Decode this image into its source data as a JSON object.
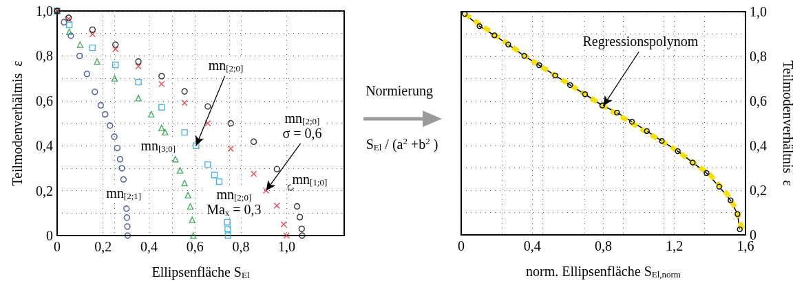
{
  "chart_data": [
    {
      "type": "scatter",
      "xlabel": "Ellipsenfläche S$_{El}$",
      "ylabel": "Teilmodenverhältnis  ε",
      "xlim": [
        0,
        1.25
      ],
      "xticks": [
        0,
        {
          "value": 0.2,
          "label": "0,2"
        },
        {
          "value": 0.25,
          "label": null
        },
        {
          "value": 0.4,
          "label": "0,4"
        },
        {
          "value": 0.5,
          "label": null
        },
        {
          "value": 0.6,
          "label": "0,6"
        },
        {
          "value": 0.75,
          "label": null
        },
        {
          "value": 0.8,
          "label": "0,8"
        },
        {
          "value": 1,
          "label": "1,0"
        }
      ],
      "ylim": [
        0,
        1
      ],
      "yticks": [
        0,
        {
          "value": 0.1,
          "label": null
        },
        {
          "value": 0.2,
          "label": "0,2"
        },
        {
          "value": 0.3,
          "label": null
        },
        {
          "value": 0.4,
          "label": "0,4"
        },
        {
          "value": 0.5,
          "label": null
        },
        {
          "value": 0.6,
          "label": "0,6"
        },
        {
          "value": 0.7,
          "label": null
        },
        {
          "value": 0.8,
          "label": "0,8"
        },
        {
          "value": 0.9,
          "label": null
        },
        {
          "value": 1,
          "label": "1,0"
        }
      ],
      "grid": true,
      "series": [
        {
          "color": "#1f2f8f",
          "marker": "circle",
          "x": [
            0,
            0.03,
            0.06,
            0.098,
            0.13,
            0.164,
            0.19,
            0.209,
            0.23,
            0.249,
            0.262,
            0.274,
            0.282,
            0.289,
            0.302,
            0.304,
            0.306,
            0.307
          ],
          "values": [
            1,
            0.95,
            0.89,
            0.8,
            0.72,
            0.64,
            0.58,
            0.54,
            0.49,
            0.44,
            0.39,
            0.34,
            0.3,
            0.25,
            0.12,
            0.08,
            0.04,
            0
          ]
        },
        {
          "color": "#1a9a3a",
          "marker": "triangle",
          "x": [
            0,
            0.053,
            0.1,
            0.174,
            0.25,
            0.354,
            0.41,
            0.455,
            0.47,
            0.515,
            0.535,
            0.555,
            0.57,
            0.58,
            0.588,
            0.593
          ],
          "values": [
            1,
            0.907,
            0.85,
            0.775,
            0.7,
            0.612,
            0.54,
            0.479,
            0.46,
            0.34,
            0.29,
            0.234,
            0.18,
            0.13,
            0.07,
            0
          ]
        },
        {
          "color": "#1fa0e0",
          "marker": "square",
          "x": [
            0,
            0.053,
            0.154,
            0.254,
            0.354,
            0.455,
            0.555,
            0.605,
            0.656,
            0.685,
            0.706,
            0.741,
            0.743,
            0.744
          ],
          "values": [
            1,
            0.938,
            0.836,
            0.76,
            0.683,
            0.571,
            0.459,
            0.4,
            0.316,
            0.27,
            0.24,
            0.06,
            0.03,
            0
          ]
        },
        {
          "color": "#e0202a",
          "marker": "cross",
          "x": [
            0,
            0.05,
            0.154,
            0.254,
            0.354,
            0.455,
            0.555,
            0.656,
            0.756,
            0.856,
            0.91,
            0.957,
            0.987,
            0.999
          ],
          "values": [
            1,
            0.965,
            0.897,
            0.83,
            0.754,
            0.675,
            0.591,
            0.5,
            0.387,
            0.275,
            0.2,
            0.133,
            0.05,
            0
          ]
        },
        {
          "color": "#000000",
          "marker": "circle",
          "x": [
            0,
            0.05,
            0.154,
            0.254,
            0.354,
            0.455,
            0.555,
            0.656,
            0.756,
            0.856,
            0.957,
            1.017,
            1.045,
            1.057,
            1.065,
            1.067
          ],
          "values": [
            1,
            0.97,
            0.917,
            0.85,
            0.775,
            0.71,
            0.642,
            0.575,
            0.5,
            0.418,
            0.296,
            0.214,
            0.13,
            0.082,
            0.03,
            0
          ]
        }
      ],
      "annotations": [
        "mn$_{[2;1]}$",
        "mn$_{[3;0]}$",
        "mn$_{[2;0]}$\nMa$_{x}$ = 0,3",
        {
          "text": "mn$_{[2;0]}$\nσ = 0,6",
          "x": 0.91,
          "y": 0.2
        },
        "mn$_{[1;0]}$",
        {
          "text": "mn$_{[2;0]}$",
          "x": 0.605,
          "y": 0.4
        }
      ]
    },
    {
      "type": "line",
      "xlabel": "norm. Ellipsenfläche S$_{El,norm}$",
      "ylabel": "Teilmodenverhältnis  ε",
      "xlim": [
        0,
        1.6
      ],
      "xticks": [
        0,
        {
          "value": 0.23,
          "label": null
        },
        {
          "value": 0.4,
          "label": "0,4"
        },
        {
          "value": 0.46,
          "label": null
        },
        {
          "value": 0.69,
          "label": null
        },
        {
          "value": 0.8,
          "label": "0,8"
        },
        {
          "value": 0.91,
          "label": null
        },
        {
          "value": 1.14,
          "label": null
        },
        {
          "value": 1.2,
          "label": "1,2"
        },
        {
          "value": 1.37,
          "label": null
        },
        {
          "value": 1.6,
          "label": "1,6"
        }
      ],
      "ylim": [
        0,
        1
      ],
      "yticks": [
        0,
        {
          "value": 0.1,
          "label": null
        },
        {
          "value": 0.2,
          "label": "0,2"
        },
        {
          "value": 0.3,
          "label": null
        },
        {
          "value": 0.4,
          "label": "0,4"
        },
        {
          "value": 0.5,
          "label": null
        },
        {
          "value": 0.6,
          "label": "0,6"
        },
        {
          "value": 0.7,
          "label": null
        },
        {
          "value": 0.8,
          "label": "0,8"
        },
        {
          "value": 0.9,
          "label": null
        },
        {
          "value": 1,
          "label": "1,0"
        }
      ],
      "grid": true,
      "series": [
        {
          "color": "#000000",
          "marker": "circle",
          "x": [
            0.02,
            0.103,
            0.187,
            0.265,
            0.355,
            0.439,
            0.529,
            0.613,
            0.697,
            0.794,
            0.877,
            0.961,
            1.045,
            1.129,
            1.219,
            1.303,
            1.381,
            1.452,
            1.516,
            1.555,
            1.568
          ],
          "values": [
            0.99,
            0.935,
            0.894,
            0.853,
            0.802,
            0.76,
            0.714,
            0.671,
            0.63,
            0.58,
            0.548,
            0.507,
            0.465,
            0.421,
            0.375,
            0.324,
            0.277,
            0.216,
            0.155,
            0.093,
            0.025
          ]
        },
        {
          "color": "#f5e000",
          "marker": "none",
          "line_style": "dashed",
          "x": [
            0.02,
            0.4,
            0.8,
            1.2,
            1.4,
            1.5,
            1.55,
            1.585
          ],
          "values": [
            0.99,
            0.78,
            0.578,
            0.385,
            0.27,
            0.18,
            0.11,
            0.02
          ]
        }
      ],
      "annotations": [
        "Normierung",
        "S$_{El}$ / (a$^{2}$ +b$^{2}$ )",
        {
          "text": "Regressionspolynom",
          "x": 0.8,
          "y": 0.578
        }
      ]
    }
  ]
}
